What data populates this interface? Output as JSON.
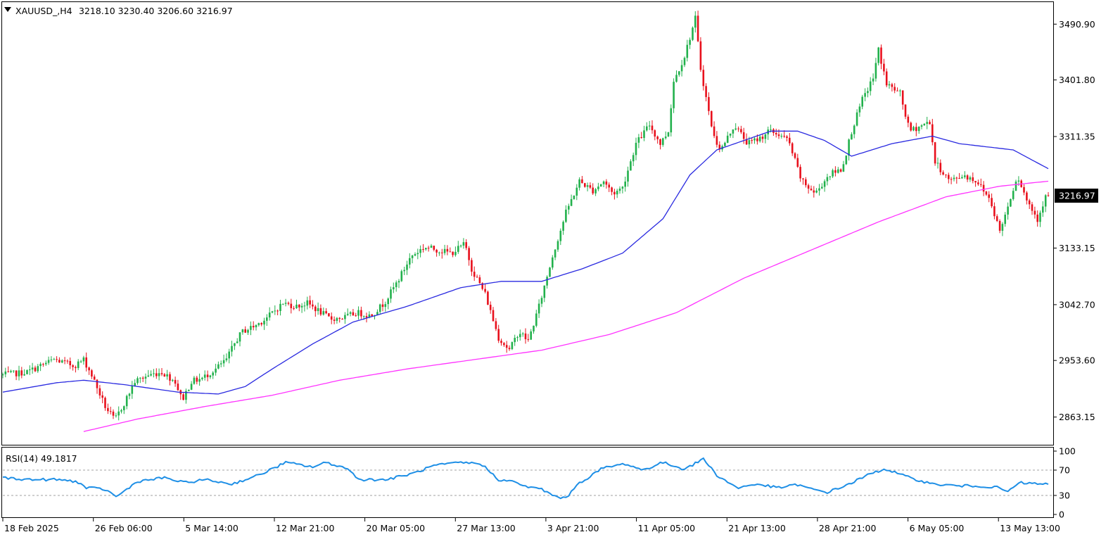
{
  "chart_data": {
    "type": "candlestick",
    "header": {
      "symbol_label": "XAUUSD_,H4",
      "ohlc_text": "3218.10 3230.40 3206.60 3216.97"
    },
    "current_price": 3216.97,
    "current_price_label": "3216.97",
    "price_axis": {
      "range": [
        2820.0,
        3525.0
      ],
      "ticks": [
        3490.9,
        3401.8,
        3311.35,
        3216.97,
        3133.15,
        3042.7,
        2953.6,
        2863.15
      ],
      "tick_labels": [
        "3490.90",
        "3401.80",
        "3311.35",
        "3133.15",
        "3042.70",
        "2953.60",
        "2863.15"
      ]
    },
    "x_axis_labels": [
      "18 Feb 2025",
      "26 Feb 06:00",
      "5 Mar 14:00",
      "12 Mar 21:00",
      "20 Mar 05:00",
      "27 Mar 13:00",
      "3 Apr 21:00",
      "11 Apr 05:00",
      "21 Apr 13:00",
      "28 Apr 21:00",
      "6 May 05:00",
      "13 May 13:00"
    ],
    "colors": {
      "bull": "#22b14c",
      "bear": "#e8101c",
      "ma_fast": "#2a2ae0",
      "ma_slow": "#ff33ff",
      "rsi": "#1e8fe6",
      "frame": "#000000"
    },
    "price_path": [
      [
        0,
        2930
      ],
      [
        20,
        2935
      ],
      [
        40,
        2955
      ],
      [
        55,
        2945
      ],
      [
        62,
        2955
      ],
      [
        68,
        2930
      ],
      [
        78,
        2880
      ],
      [
        85,
        2858
      ],
      [
        92,
        2885
      ],
      [
        100,
        2920
      ],
      [
        110,
        2930
      ],
      [
        120,
        2935
      ],
      [
        130,
        2920
      ],
      [
        135,
        2890
      ],
      [
        142,
        2920
      ],
      [
        150,
        2925
      ],
      [
        160,
        2940
      ],
      [
        168,
        2955
      ],
      [
        175,
        2985
      ],
      [
        180,
        3000
      ],
      [
        190,
        3010
      ],
      [
        198,
        3022
      ],
      [
        210,
        3045
      ],
      [
        220,
        3040
      ],
      [
        228,
        3045
      ],
      [
        235,
        3035
      ],
      [
        245,
        3020
      ],
      [
        255,
        3022
      ],
      [
        265,
        3030
      ],
      [
        275,
        3025
      ],
      [
        285,
        3045
      ],
      [
        295,
        3080
      ],
      [
        305,
        3120
      ],
      [
        315,
        3135
      ],
      [
        325,
        3130
      ],
      [
        335,
        3125
      ],
      [
        345,
        3140
      ],
      [
        350,
        3100
      ],
      [
        360,
        3060
      ],
      [
        370,
        2990
      ],
      [
        378,
        2970
      ],
      [
        385,
        3000
      ],
      [
        392,
        2985
      ],
      [
        400,
        3040
      ],
      [
        410,
        3120
      ],
      [
        420,
        3190
      ],
      [
        430,
        3240
      ],
      [
        440,
        3225
      ],
      [
        448,
        3240
      ],
      [
        455,
        3220
      ],
      [
        462,
        3230
      ],
      [
        472,
        3300
      ],
      [
        482,
        3330
      ],
      [
        490,
        3300
      ],
      [
        496,
        3320
      ],
      [
        500,
        3400
      ],
      [
        508,
        3440
      ],
      [
        516,
        3500
      ],
      [
        520,
        3420
      ],
      [
        526,
        3350
      ],
      [
        530,
        3310
      ],
      [
        535,
        3290
      ],
      [
        545,
        3330
      ],
      [
        555,
        3300
      ],
      [
        565,
        3310
      ],
      [
        570,
        3320
      ],
      [
        578,
        3315
      ],
      [
        585,
        3305
      ],
      [
        595,
        3240
      ],
      [
        605,
        3220
      ],
      [
        615,
        3250
      ],
      [
        625,
        3260
      ],
      [
        632,
        3320
      ],
      [
        640,
        3370
      ],
      [
        648,
        3405
      ],
      [
        652,
        3450
      ],
      [
        658,
        3395
      ],
      [
        668,
        3380
      ],
      [
        675,
        3320
      ],
      [
        685,
        3330
      ],
      [
        690,
        3335
      ],
      [
        694,
        3270
      ],
      [
        705,
        3240
      ],
      [
        715,
        3250
      ],
      [
        725,
        3240
      ],
      [
        735,
        3210
      ],
      [
        742,
        3160
      ],
      [
        748,
        3200
      ],
      [
        755,
        3250
      ],
      [
        762,
        3210
      ],
      [
        770,
        3180
      ],
      [
        776,
        3215
      ]
    ],
    "ma_fast": [
      [
        0,
        2903
      ],
      [
        40,
        2918
      ],
      [
        60,
        2922
      ],
      [
        90,
        2915
      ],
      [
        130,
        2903
      ],
      [
        160,
        2900
      ],
      [
        180,
        2912
      ],
      [
        200,
        2940
      ],
      [
        230,
        2980
      ],
      [
        260,
        3015
      ],
      [
        300,
        3040
      ],
      [
        340,
        3070
      ],
      [
        370,
        3080
      ],
      [
        400,
        3080
      ],
      [
        430,
        3100
      ],
      [
        460,
        3125
      ],
      [
        490,
        3180
      ],
      [
        510,
        3250
      ],
      [
        530,
        3290
      ],
      [
        550,
        3305
      ],
      [
        570,
        3320
      ],
      [
        590,
        3320
      ],
      [
        610,
        3305
      ],
      [
        630,
        3280
      ],
      [
        660,
        3300
      ],
      [
        690,
        3312
      ],
      [
        710,
        3300
      ],
      [
        730,
        3295
      ],
      [
        750,
        3290
      ],
      [
        776,
        3260
      ]
    ],
    "ma_slow": [
      [
        60,
        2840
      ],
      [
        100,
        2860
      ],
      [
        150,
        2880
      ],
      [
        200,
        2898
      ],
      [
        250,
        2922
      ],
      [
        300,
        2940
      ],
      [
        350,
        2955
      ],
      [
        400,
        2970
      ],
      [
        450,
        2995
      ],
      [
        500,
        3030
      ],
      [
        550,
        3085
      ],
      [
        600,
        3130
      ],
      [
        650,
        3175
      ],
      [
        700,
        3215
      ],
      [
        740,
        3232
      ],
      [
        776,
        3240
      ]
    ],
    "rsi": {
      "label": "RSI(14) 49.1817",
      "value": 49.1817,
      "range": [
        0,
        100
      ],
      "levels": [
        30,
        70
      ],
      "tick_labels": [
        "100",
        "70",
        "30",
        "0"
      ],
      "values": [
        [
          0,
          58
        ],
        [
          20,
          55
        ],
        [
          40,
          55
        ],
        [
          55,
          52
        ],
        [
          62,
          42
        ],
        [
          75,
          40
        ],
        [
          85,
          28
        ],
        [
          92,
          40
        ],
        [
          100,
          52
        ],
        [
          120,
          58
        ],
        [
          135,
          50
        ],
        [
          150,
          55
        ],
        [
          170,
          48
        ],
        [
          190,
          62
        ],
        [
          210,
          82
        ],
        [
          230,
          75
        ],
        [
          240,
          82
        ],
        [
          255,
          73
        ],
        [
          265,
          55
        ],
        [
          285,
          55
        ],
        [
          305,
          65
        ],
        [
          320,
          77
        ],
        [
          340,
          82
        ],
        [
          355,
          80
        ],
        [
          368,
          55
        ],
        [
          378,
          52
        ],
        [
          392,
          42
        ],
        [
          400,
          40
        ],
        [
          408,
          30
        ],
        [
          418,
          25
        ],
        [
          425,
          45
        ],
        [
          445,
          73
        ],
        [
          462,
          80
        ],
        [
          475,
          70
        ],
        [
          490,
          82
        ],
        [
          505,
          72
        ],
        [
          512,
          78
        ],
        [
          520,
          88
        ],
        [
          530,
          62
        ],
        [
          545,
          42
        ],
        [
          560,
          48
        ],
        [
          575,
          42
        ],
        [
          590,
          47
        ],
        [
          600,
          40
        ],
        [
          612,
          35
        ],
        [
          625,
          45
        ],
        [
          645,
          65
        ],
        [
          655,
          72
        ],
        [
          670,
          60
        ],
        [
          690,
          48
        ],
        [
          710,
          45
        ],
        [
          725,
          45
        ],
        [
          740,
          42
        ],
        [
          745,
          35
        ],
        [
          755,
          50
        ],
        [
          770,
          48
        ],
        [
          776,
          49
        ]
      ]
    }
  }
}
